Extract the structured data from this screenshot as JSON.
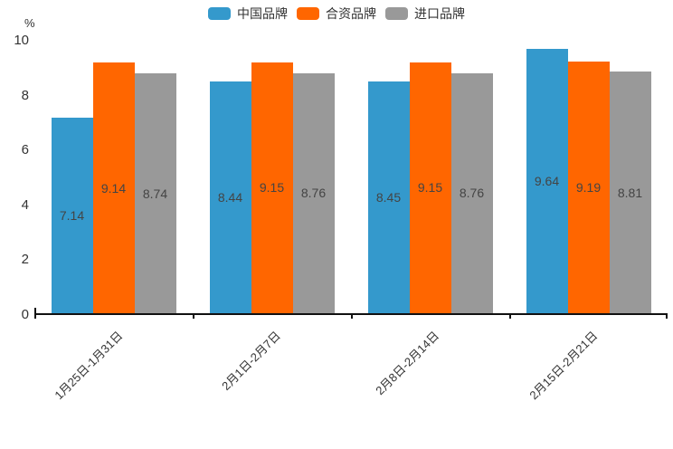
{
  "chart_data": {
    "type": "bar",
    "title": "",
    "categories": [
      "1月25日-1月31日",
      "2月1日-2月7日",
      "2月8日-2月14日",
      "2月15日-2月21日"
    ],
    "series": [
      {
        "name": "中国品牌",
        "color": "#3499CC",
        "values": [
          7.14,
          8.44,
          8.45,
          9.64
        ]
      },
      {
        "name": "合资品牌",
        "color": "#FF6600",
        "values": [
          9.14,
          9.15,
          9.15,
          9.19
        ]
      },
      {
        "name": "进口品牌",
        "color": "#999999",
        "values": [
          8.74,
          8.76,
          8.76,
          8.81
        ]
      }
    ],
    "xlabel": "",
    "ylabel": "%",
    "ylim": [
      0,
      10
    ],
    "yticks": [
      0,
      2,
      4,
      6,
      8,
      10
    ],
    "value_labels": true,
    "value_label_color": "#444444",
    "axis_color": "#111111",
    "legend_position": "top",
    "grid": false,
    "x_label_rotation_deg": -45
  }
}
